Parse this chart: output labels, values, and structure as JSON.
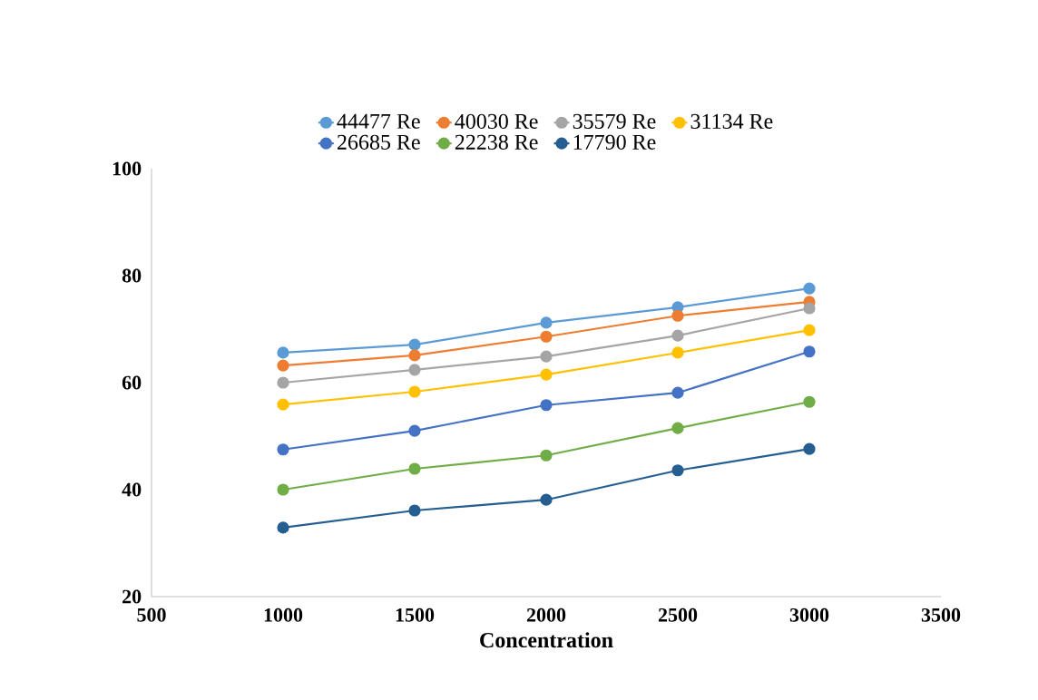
{
  "chart_data": {
    "type": "line",
    "xlabel": "Concentration",
    "x": [
      1000,
      1500,
      2000,
      2500,
      3000
    ],
    "xlim": [
      500,
      3500
    ],
    "xticks": [
      500,
      1000,
      1500,
      2000,
      2500,
      3000,
      3500
    ],
    "ylim": [
      20,
      100
    ],
    "yticks": [
      20,
      40,
      60,
      80,
      100
    ],
    "grid": false,
    "legend": "top",
    "marker": "circle",
    "line_style": "solid",
    "series": [
      {
        "name": "44477 Re",
        "color": "#5b9bd5",
        "values": [
          65.6,
          67.1,
          71.2,
          74.1,
          77.6
        ]
      },
      {
        "name": "40030 Re",
        "color": "#ed7d31",
        "values": [
          63.2,
          65.1,
          68.6,
          72.5,
          75.1
        ]
      },
      {
        "name": "35579 Re",
        "color": "#a5a5a5",
        "values": [
          60.0,
          62.4,
          64.9,
          68.8,
          73.9
        ]
      },
      {
        "name": "31134 Re",
        "color": "#ffc000",
        "values": [
          55.9,
          58.3,
          61.5,
          65.6,
          69.8
        ]
      },
      {
        "name": "26685 Re",
        "color": "#4472c4",
        "values": [
          47.5,
          51.0,
          55.8,
          58.1,
          65.8
        ]
      },
      {
        "name": "22238 Re",
        "color": "#70ad47",
        "values": [
          40.0,
          43.9,
          46.4,
          51.5,
          56.4
        ]
      },
      {
        "name": "17790 Re",
        "color": "#255e91",
        "values": [
          32.9,
          36.1,
          38.1,
          43.6,
          47.6
        ]
      }
    ]
  }
}
